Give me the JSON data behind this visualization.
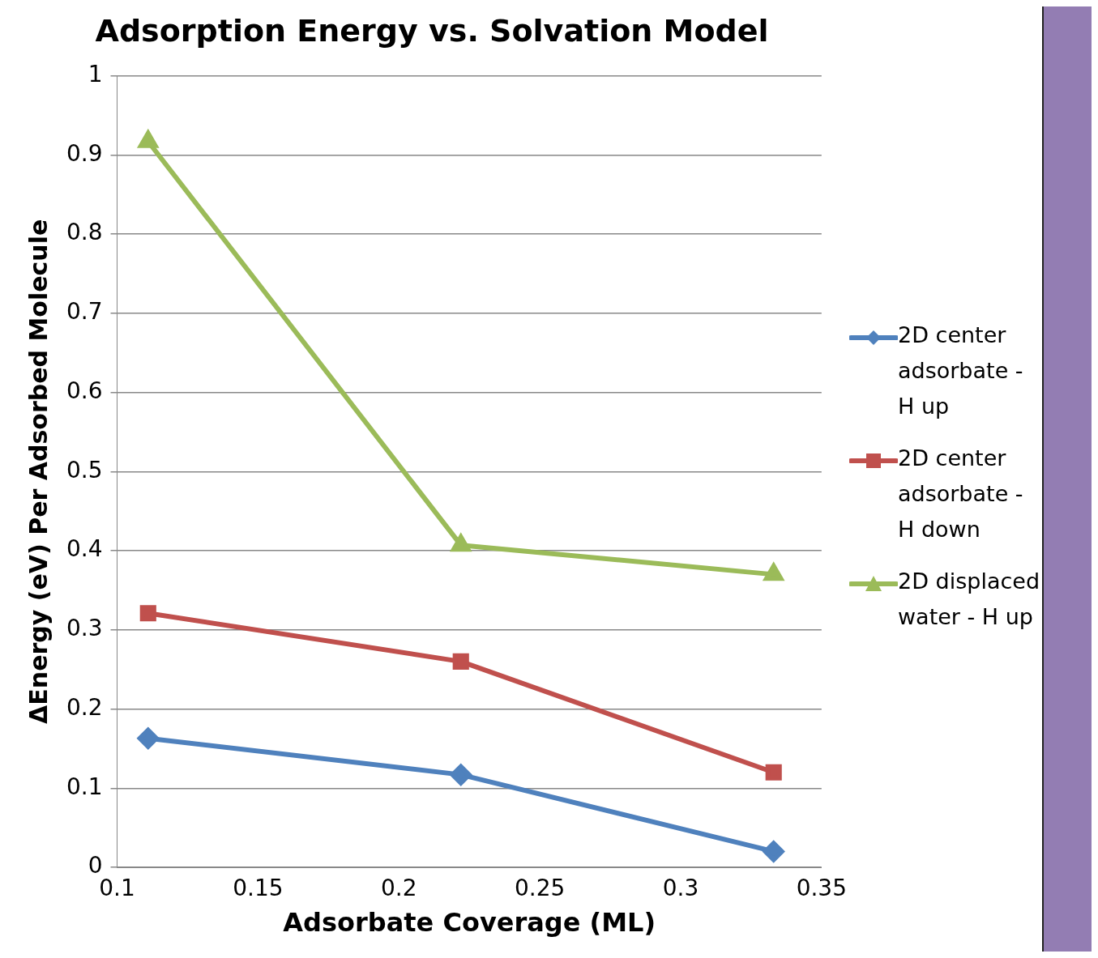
{
  "chart_data": {
    "type": "line",
    "title": "Adsorption Energy vs. Solvation Model",
    "xlabel": "Adsorbate Coverage (ML)",
    "ylabel": "ΔEnergy (eV) Per Adsorbed Molecule",
    "x": [
      0.111,
      0.222,
      0.333
    ],
    "series": [
      {
        "name": "2D center adsorbate - H up",
        "color": "#4f81bd",
        "marker": "diamond",
        "values": [
          0.163,
          0.117,
          0.02
        ]
      },
      {
        "name": "2D center adsorbate - H down",
        "color": "#c0504d",
        "marker": "square",
        "values": [
          0.321,
          0.26,
          0.12
        ]
      },
      {
        "name": "2D displaced water - H up",
        "color": "#9bbb59",
        "marker": "triangle",
        "values": [
          0.917,
          0.407,
          0.37
        ]
      }
    ],
    "xlim": [
      0.1,
      0.35
    ],
    "xticks": [
      0.1,
      0.15,
      0.2,
      0.25,
      0.3,
      0.35
    ],
    "ylim": [
      0,
      1
    ],
    "yticks": [
      0,
      0.1,
      0.2,
      0.3,
      0.4,
      0.5,
      0.6,
      0.7,
      0.8,
      0.9,
      1
    ],
    "grid": "y",
    "legend": "right"
  }
}
